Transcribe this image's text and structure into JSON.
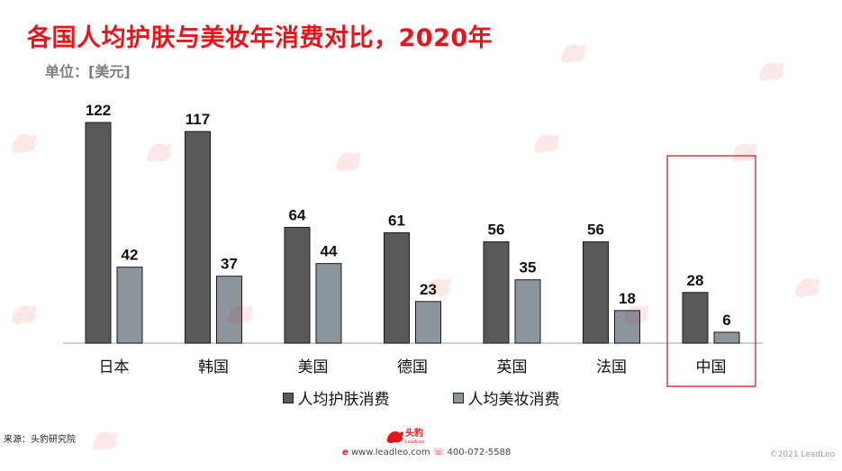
{
  "title": "各国人均护肤与美妆年消费对比，2020年",
  "unit_label": "单位：[美元]",
  "source": "来源：头豹研究院",
  "footer": {
    "logo_text": "头豹",
    "logo_subtext": "LeadLeo",
    "website": "www.leadleo.com",
    "phone": "400-072-5588",
    "copyright": "©2021 LeadLeo"
  },
  "colors": {
    "title": "#e8141c",
    "series_skincare": "#595959",
    "series_makeup": "#8c959c",
    "highlight_box": "#c0262b"
  },
  "chart_data": {
    "type": "bar",
    "categories": [
      "日本",
      "韩国",
      "美国",
      "德国",
      "英国",
      "法国",
      "中国"
    ],
    "series": [
      {
        "name": "人均护肤消费",
        "values": [
          122,
          117,
          64,
          61,
          56,
          56,
          28
        ]
      },
      {
        "name": "人均美妆消费",
        "values": [
          42,
          37,
          44,
          23,
          35,
          18,
          6
        ]
      }
    ],
    "highlighted_category": "中国",
    "ylim": [
      0,
      122
    ],
    "grid": false,
    "legend_position": "bottom",
    "data_labels": true
  }
}
